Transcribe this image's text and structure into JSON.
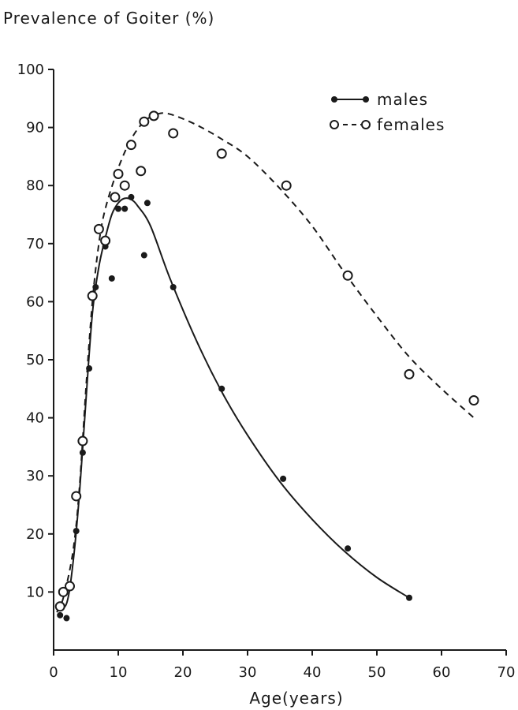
{
  "chart_data": {
    "type": "scatter",
    "ylabel": "Prevalence of Goiter (%)",
    "xlabel": "Age(years)",
    "xlim": [
      0,
      70
    ],
    "ylim": [
      0,
      100
    ],
    "x_ticks": [
      0,
      10,
      20,
      30,
      40,
      50,
      60,
      70
    ],
    "y_ticks": [
      10,
      20,
      30,
      40,
      50,
      60,
      70,
      80,
      90,
      100
    ],
    "grid": false,
    "legend_position": "top-right",
    "series": [
      {
        "name": "males",
        "marker": "filled-circle",
        "line_style": "solid",
        "color": "#1a1a1a",
        "points": [
          {
            "x": 1,
            "y": 6
          },
          {
            "x": 2,
            "y": 5.5
          },
          {
            "x": 3.5,
            "y": 20.5
          },
          {
            "x": 4.5,
            "y": 34
          },
          {
            "x": 5.5,
            "y": 48.5
          },
          {
            "x": 6.5,
            "y": 62.5
          },
          {
            "x": 8,
            "y": 69.5
          },
          {
            "x": 9,
            "y": 64
          },
          {
            "x": 10,
            "y": 76
          },
          {
            "x": 11,
            "y": 76
          },
          {
            "x": 12,
            "y": 78
          },
          {
            "x": 14,
            "y": 68
          },
          {
            "x": 14.5,
            "y": 77
          },
          {
            "x": 18.5,
            "y": 62.5
          },
          {
            "x": 26,
            "y": 45
          },
          {
            "x": 35.5,
            "y": 29.5
          },
          {
            "x": 45.5,
            "y": 17.5
          },
          {
            "x": 55,
            "y": 9
          }
        ],
        "curve": [
          [
            0.5,
            7
          ],
          [
            2,
            8
          ],
          [
            3,
            15
          ],
          [
            4,
            27
          ],
          [
            5,
            43
          ],
          [
            6,
            58
          ],
          [
            7,
            66
          ],
          [
            8,
            71
          ],
          [
            9,
            75
          ],
          [
            10,
            77
          ],
          [
            11,
            77.8
          ],
          [
            12,
            77.6
          ],
          [
            13,
            76.5
          ],
          [
            15,
            73
          ],
          [
            18,
            64
          ],
          [
            22,
            53.5
          ],
          [
            26,
            44.5
          ],
          [
            30,
            37
          ],
          [
            35,
            29
          ],
          [
            40,
            22.5
          ],
          [
            45,
            17
          ],
          [
            50,
            12.5
          ],
          [
            55,
            9
          ]
        ]
      },
      {
        "name": "females",
        "marker": "open-circle",
        "line_style": "dashed",
        "color": "#1a1a1a",
        "points": [
          {
            "x": 1,
            "y": 7.5
          },
          {
            "x": 1.5,
            "y": 10
          },
          {
            "x": 2.5,
            "y": 11
          },
          {
            "x": 3.5,
            "y": 26.5
          },
          {
            "x": 4.5,
            "y": 36
          },
          {
            "x": 6,
            "y": 61
          },
          {
            "x": 7,
            "y": 72.5
          },
          {
            "x": 8,
            "y": 70.5
          },
          {
            "x": 9.5,
            "y": 78
          },
          {
            "x": 10,
            "y": 82
          },
          {
            "x": 11,
            "y": 80
          },
          {
            "x": 12,
            "y": 87
          },
          {
            "x": 13.5,
            "y": 82.5
          },
          {
            "x": 14,
            "y": 91
          },
          {
            "x": 15.5,
            "y": 92
          },
          {
            "x": 18.5,
            "y": 89
          },
          {
            "x": 26,
            "y": 85.5
          },
          {
            "x": 36,
            "y": 80
          },
          {
            "x": 45.5,
            "y": 64.5
          },
          {
            "x": 55,
            "y": 47.5
          },
          {
            "x": 65,
            "y": 43
          }
        ],
        "curve": [
          [
            0.5,
            6.5
          ],
          [
            1.5,
            9
          ],
          [
            3,
            17
          ],
          [
            4,
            28
          ],
          [
            5,
            45
          ],
          [
            6,
            60
          ],
          [
            7,
            70
          ],
          [
            8,
            76
          ],
          [
            10,
            83
          ],
          [
            12,
            88
          ],
          [
            14,
            91
          ],
          [
            16,
            92.3
          ],
          [
            18,
            92.3
          ],
          [
            22,
            90.5
          ],
          [
            26,
            88
          ],
          [
            30,
            85
          ],
          [
            35,
            79.5
          ],
          [
            40,
            73
          ],
          [
            45,
            65
          ],
          [
            50,
            57.5
          ],
          [
            55,
            50.5
          ],
          [
            60,
            45
          ],
          [
            65,
            40
          ]
        ]
      }
    ]
  }
}
